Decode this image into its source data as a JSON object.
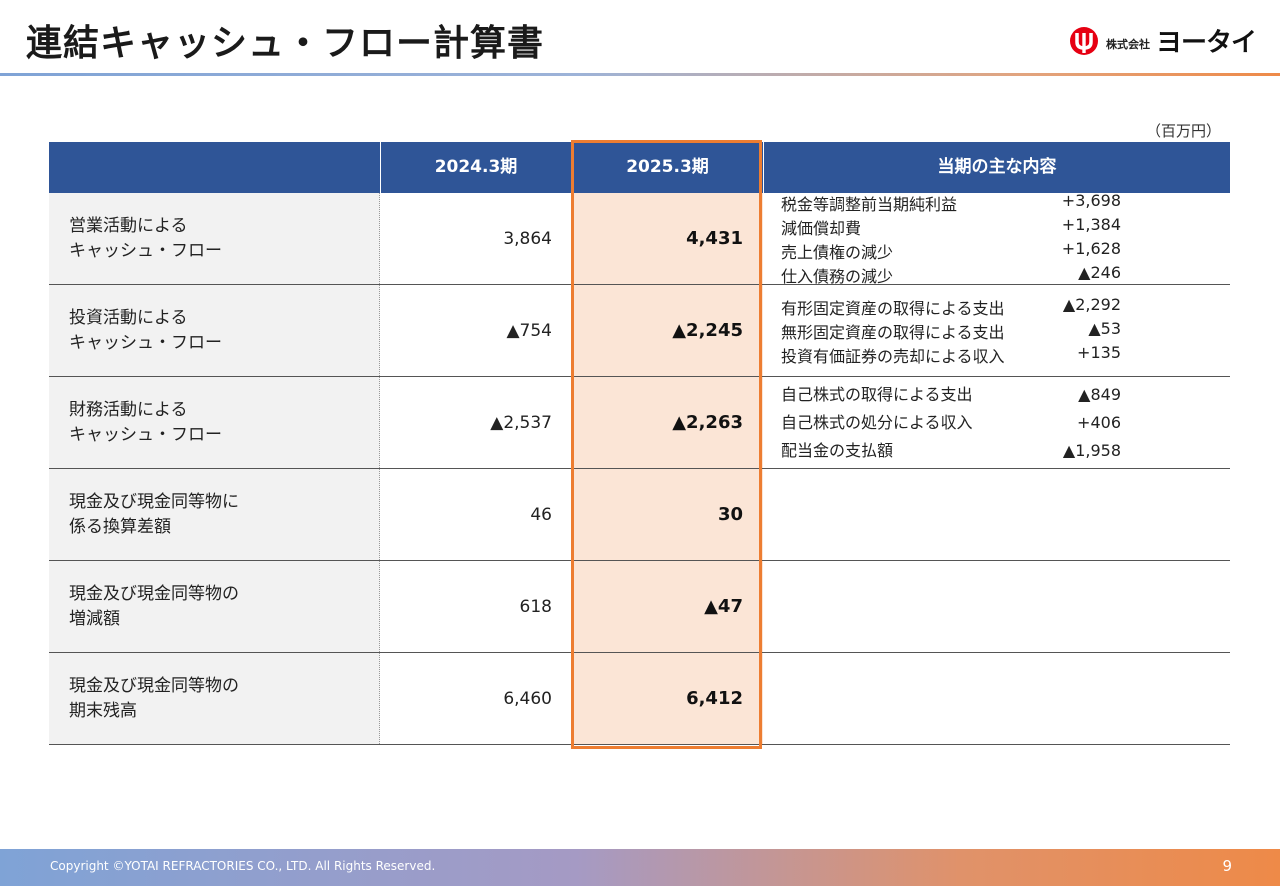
{
  "header": {
    "title": "連結キャッシュ・フロー計算書",
    "logo_company": "株式会社",
    "logo_name": "ヨータイ",
    "brand_color": "#e60012"
  },
  "unit": "（百万円）",
  "table": {
    "columns": [
      "",
      "2024.3期",
      "2025.3期",
      "当期の主な内容"
    ],
    "rows": [
      {
        "label1": "営業活動による",
        "label2": "キャッシュ・フロー",
        "v2024": "3,864",
        "v2025": "4,431",
        "details": [
          {
            "text": "税金等調整前当期純利益",
            "value": "+3,698"
          },
          {
            "text": "減価償却費",
            "value": "+1,384"
          },
          {
            "text": "売上債権の減少",
            "value": "+1,628"
          },
          {
            "text": "仕入債務の減少",
            "value": "▲246"
          }
        ]
      },
      {
        "label1": "投資活動による",
        "label2": "キャッシュ・フロー",
        "v2024": "▲754",
        "v2025": "▲2,245",
        "details": [
          {
            "text": "有形固定資産の取得による支出",
            "value": "▲2,292"
          },
          {
            "text": "無形固定資産の取得による支出",
            "value": "▲53"
          },
          {
            "text": "投資有価証券の売却による収入",
            "value": "+135"
          }
        ]
      },
      {
        "label1": "財務活動による",
        "label2": "キャッシュ・フロー",
        "v2024": "▲2,537",
        "v2025": "▲2,263",
        "details": [
          {
            "text": "自己株式の取得による支出",
            "value": "▲849"
          },
          {
            "text": "自己株式の処分による収入",
            "value": "+406"
          },
          {
            "text": "配当金の支払額",
            "value": "▲1,958"
          }
        ]
      },
      {
        "label1": "現金及び現金同等物に",
        "label2": "係る換算差額",
        "v2024": "46",
        "v2025": "30",
        "details": []
      },
      {
        "label1": "現金及び現金同等物の",
        "label2": "増減額",
        "v2024": "618",
        "v2025": "▲47",
        "details": []
      },
      {
        "label1": "現金及び現金同等物の",
        "label2": "期末残高",
        "v2024": "6,460",
        "v2025": "6,412",
        "details": []
      }
    ]
  },
  "footer": {
    "copyright": "Copyright ©YOTAI REFRACTORIES CO., LTD. All Rights Reserved.",
    "page_number": "9"
  }
}
